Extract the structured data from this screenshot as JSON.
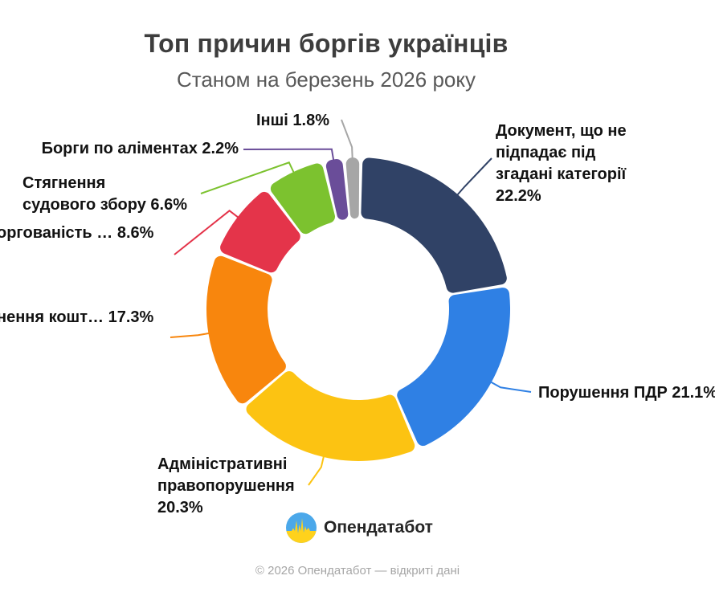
{
  "page": {
    "title": "Топ причин боргів українців",
    "subtitle": "Станом на березень 2026 року",
    "footer": "© 2026 Опендатабот — відкриті дані"
  },
  "logo": {
    "text": "Опендатабот",
    "icon": "opendatabot-pulse-circle",
    "icon_blue": "#4ba8ea",
    "icon_yellow": "#ffd21c"
  },
  "chart_data": {
    "type": "pie",
    "subtype": "donut",
    "title": "Топ причин боргів українців",
    "subtitle": "Станом на березень 2026 року",
    "unit": "%",
    "legend_position": "none",
    "label_style": "external-callouts",
    "start_angle_deg": 1,
    "direction": "clockwise",
    "total": 100.1,
    "slices": [
      {
        "id": "docs",
        "label": "Документ, що не\nпідпадає під\nзгадані категорії\n22.2%",
        "value": 22.2,
        "color": "#304266"
      },
      {
        "id": "pdr",
        "label": "Порушення ПДР 21.1%",
        "value": 21.1,
        "color": "#2f80e4"
      },
      {
        "id": "admin",
        "label": "Адміністративні\nправопорушення\n20.3%",
        "value": 20.3,
        "color": "#fcc312"
      },
      {
        "id": "kosht",
        "label": "нення кошт… 17.3%",
        "value": 17.3,
        "color": "#f8860d"
      },
      {
        "id": "zaborg",
        "label": "оргованість … 8.6%",
        "value": 8.6,
        "color": "#e4344a"
      },
      {
        "id": "sud-zbir",
        "label": "Стягнення\nсудового збору 6.6%",
        "value": 6.6,
        "color": "#7cc22f"
      },
      {
        "id": "alimony",
        "label": "Борги по аліментах 2.2%",
        "value": 2.2,
        "color": "#6a4d99"
      },
      {
        "id": "inshi",
        "label": "Інші 1.8%",
        "value": 1.8,
        "color": "#a6a6a6"
      }
    ]
  }
}
